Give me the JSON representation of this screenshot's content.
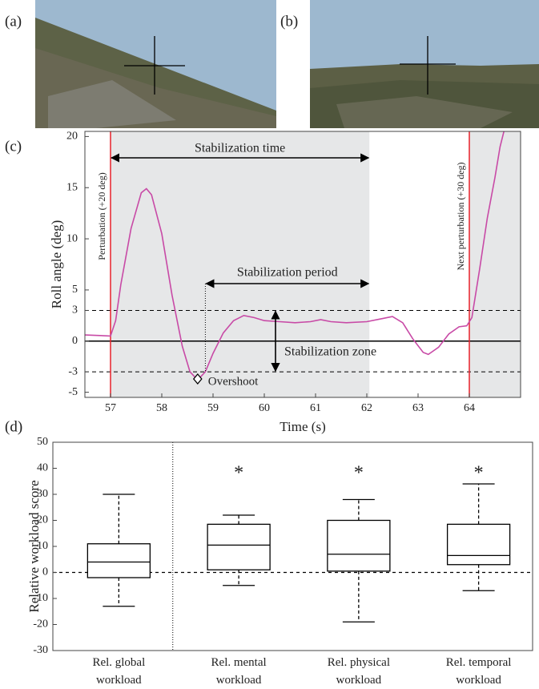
{
  "panel_labels": [
    "(a)",
    "(b)",
    "(c)",
    "(d)"
  ],
  "chart_data": [
    {
      "type": "line",
      "x_label": "Time (s)",
      "y_label": "Roll angle (deg)",
      "x": [
        56.5,
        57.0,
        57.1,
        57.2,
        57.4,
        57.6,
        57.7,
        57.8,
        58.0,
        58.2,
        58.4,
        58.55,
        58.7,
        58.85,
        59.0,
        59.2,
        59.4,
        59.6,
        59.8,
        60.0,
        60.3,
        60.6,
        60.9,
        61.1,
        61.3,
        61.6,
        62.0,
        62.3,
        62.5,
        62.7,
        62.9,
        63.1,
        63.2,
        63.4,
        63.6,
        63.8,
        63.95,
        64.05,
        64.2,
        64.35,
        64.5,
        64.6,
        64.7
      ],
      "values": [
        0.6,
        0.5,
        2,
        5.5,
        11,
        14.5,
        14.9,
        14.3,
        10.5,
        4.5,
        -0.5,
        -3,
        -3.8,
        -3,
        -1.2,
        0.8,
        2,
        2.5,
        2.3,
        2.0,
        1.9,
        1.8,
        1.9,
        2.1,
        1.9,
        1.8,
        1.9,
        2.2,
        2.4,
        1.8,
        0.2,
        -1.1,
        -1.3,
        -0.6,
        0.7,
        1.4,
        1.5,
        2.3,
        7,
        12,
        16,
        19,
        21
      ],
      "color": "#c84aa6",
      "xlim": [
        56.5,
        65
      ],
      "ylim": [
        -5.5,
        20.5
      ],
      "xticks": [
        57,
        58,
        59,
        60,
        61,
        62,
        63,
        64
      ],
      "yticks": [
        -5,
        -3,
        0,
        3,
        5,
        10,
        15,
        20
      ],
      "perturbations": [
        57,
        64
      ],
      "perturbation_color": "#e8202a",
      "perturbation_labels": [
        "Perturbation (+20 deg)",
        "Next perturbation (+30 deg)"
      ],
      "zone": [
        -3,
        3
      ],
      "zone_label": "Stabilization zone",
      "stabilization_time": [
        57,
        62.05
      ],
      "stabilization_time_label": "Stabilization time",
      "stabilization_period": [
        58.85,
        62.05
      ],
      "stabilization_period_label": "Stabilization period",
      "overshoot": {
        "x": 58.7,
        "y": -3.7,
        "label": "Overshoot"
      },
      "shade_color": "#e6e7e8"
    },
    {
      "type": "box",
      "y_label": "Relative workload score",
      "categories": [
        "Rel. global workload",
        "Rel. mental workload",
        "Rel. physical workload",
        "Rel. temporal workload"
      ],
      "stats": [
        {
          "min": -13,
          "q1": -2,
          "median": 4,
          "q3": 11,
          "max": 30
        },
        {
          "min": -5,
          "q1": 1,
          "median": 10.5,
          "q3": 18.5,
          "max": 22
        },
        {
          "min": -19,
          "q1": 0.5,
          "median": 7,
          "q3": 20,
          "max": 28
        },
        {
          "min": -7,
          "q1": 3,
          "median": 6.5,
          "q3": 18.5,
          "max": 34
        }
      ],
      "ylim": [
        -30,
        50
      ],
      "yticks": [
        -30,
        -20,
        -10,
        0,
        10,
        20,
        30,
        40,
        50
      ],
      "reference_line": 0,
      "marker": "*",
      "marked": [
        false,
        true,
        true,
        true
      ]
    }
  ]
}
